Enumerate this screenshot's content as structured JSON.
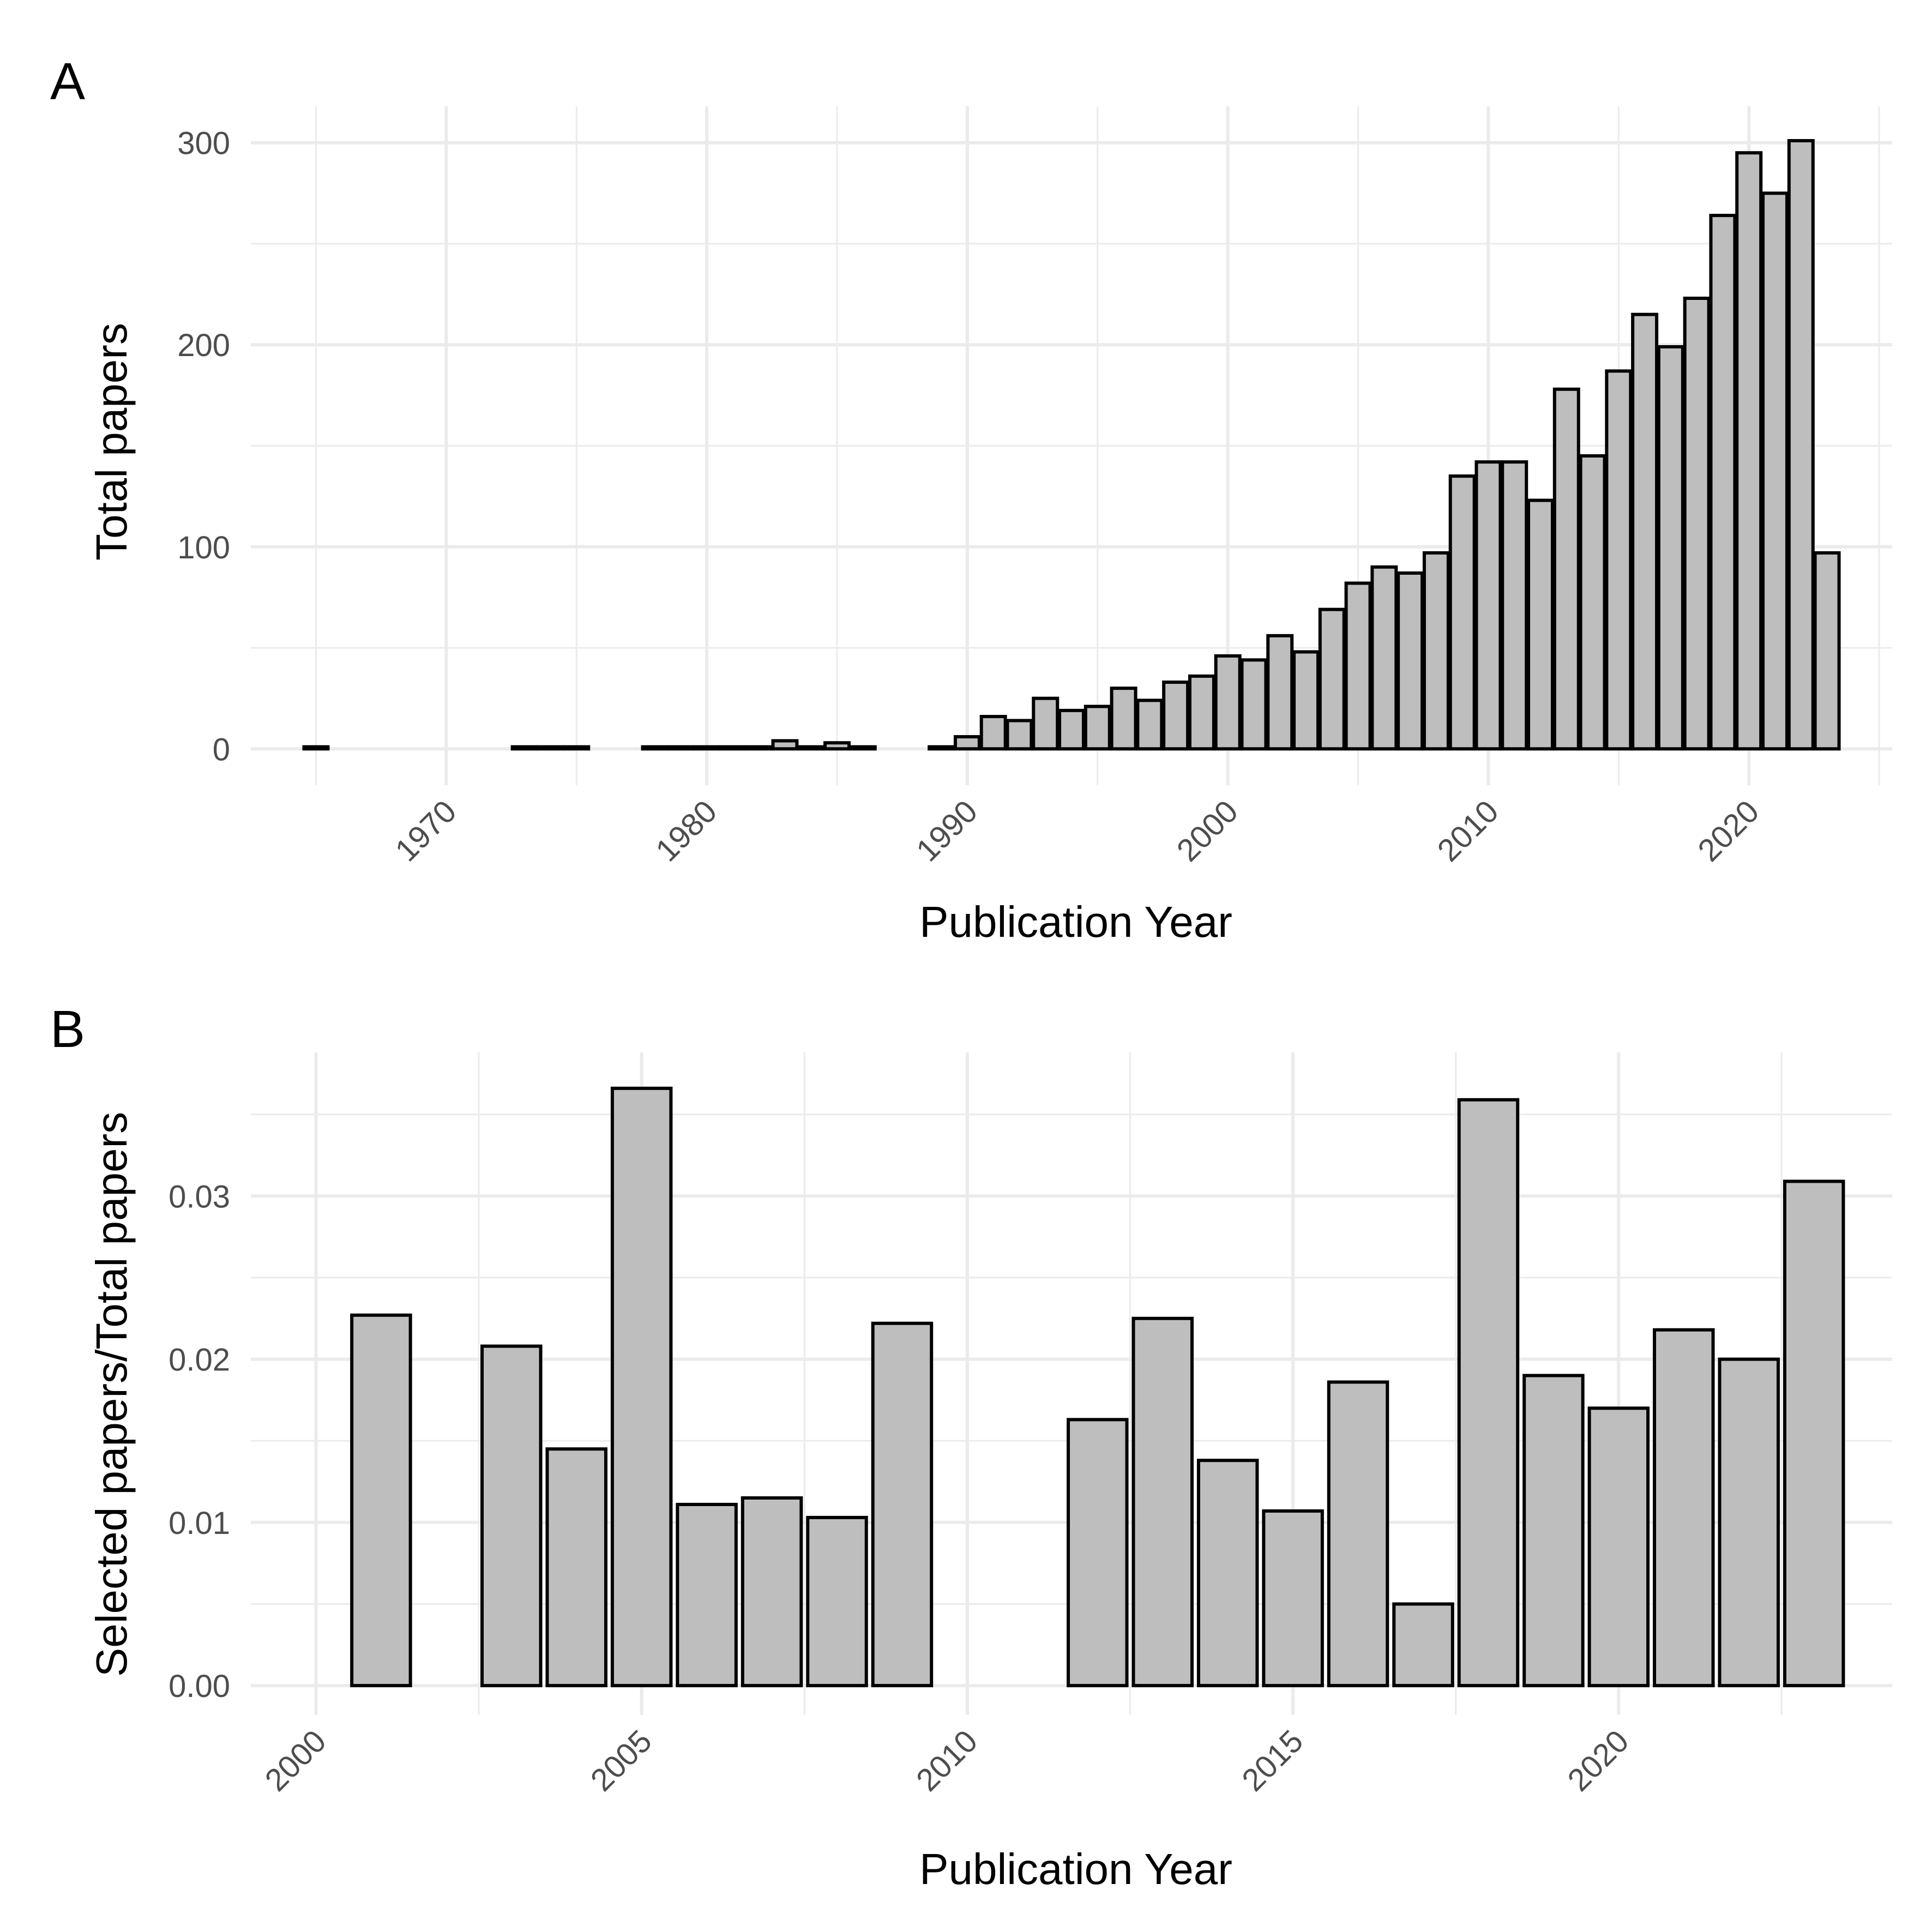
{
  "chart_data": [
    {
      "type": "bar",
      "panel": "A",
      "xlabel": "Publication Year",
      "ylabel": "Total papers",
      "xlim": [
        1962.5,
        2025.5
      ],
      "ylim": [
        -18,
        318
      ],
      "x_ticks": [
        1970,
        1980,
        1990,
        2000,
        2010,
        2020
      ],
      "y_ticks": [
        0,
        100,
        200,
        300
      ],
      "grid": true,
      "x": [
        1965,
        1973,
        1974,
        1975,
        1978,
        1979,
        1980,
        1981,
        1982,
        1983,
        1984,
        1985,
        1986,
        1989,
        1990,
        1991,
        1992,
        1993,
        1994,
        1995,
        1996,
        1997,
        1998,
        1999,
        2000,
        2001,
        2002,
        2003,
        2004,
        2005,
        2006,
        2007,
        2008,
        2009,
        2010,
        2011,
        2012,
        2013,
        2014,
        2015,
        2016,
        2017,
        2018,
        2019,
        2020,
        2021,
        2022,
        2023
      ],
      "values": [
        1,
        1,
        1,
        1,
        1,
        1,
        1,
        1,
        1,
        4,
        1,
        3,
        1,
        1,
        6,
        16,
        14,
        25,
        19,
        21,
        30,
        24,
        33,
        36,
        46,
        44,
        56,
        48,
        69,
        82,
        90,
        87,
        97,
        135,
        142,
        142,
        123,
        178,
        145,
        187,
        215,
        199,
        223,
        264,
        295,
        275,
        301,
        97
      ]
    },
    {
      "type": "bar",
      "panel": "B",
      "xlabel": "Publication Year",
      "ylabel": "Selected papers/Total papers",
      "xlim": [
        1999.0,
        2024.2
      ],
      "ylim": [
        -0.0018,
        0.0388
      ],
      "x_ticks": [
        2000,
        2005,
        2010,
        2015,
        2020
      ],
      "y_ticks": [
        0.0,
        0.01,
        0.02,
        0.03
      ],
      "y_tick_labels": [
        "0.00",
        "0.01",
        "0.02",
        "0.03"
      ],
      "grid": true,
      "x": [
        2001,
        2003,
        2004,
        2005,
        2006,
        2007,
        2008,
        2009,
        2012,
        2013,
        2014,
        2015,
        2016,
        2017,
        2018,
        2019,
        2020,
        2021,
        2022,
        2023
      ],
      "values": [
        0.0227,
        0.0208,
        0.0145,
        0.0366,
        0.0111,
        0.0115,
        0.0103,
        0.0222,
        0.0163,
        0.0225,
        0.0138,
        0.0107,
        0.0186,
        0.005,
        0.0359,
        0.019,
        0.017,
        0.0218,
        0.02,
        0.0309
      ]
    }
  ]
}
